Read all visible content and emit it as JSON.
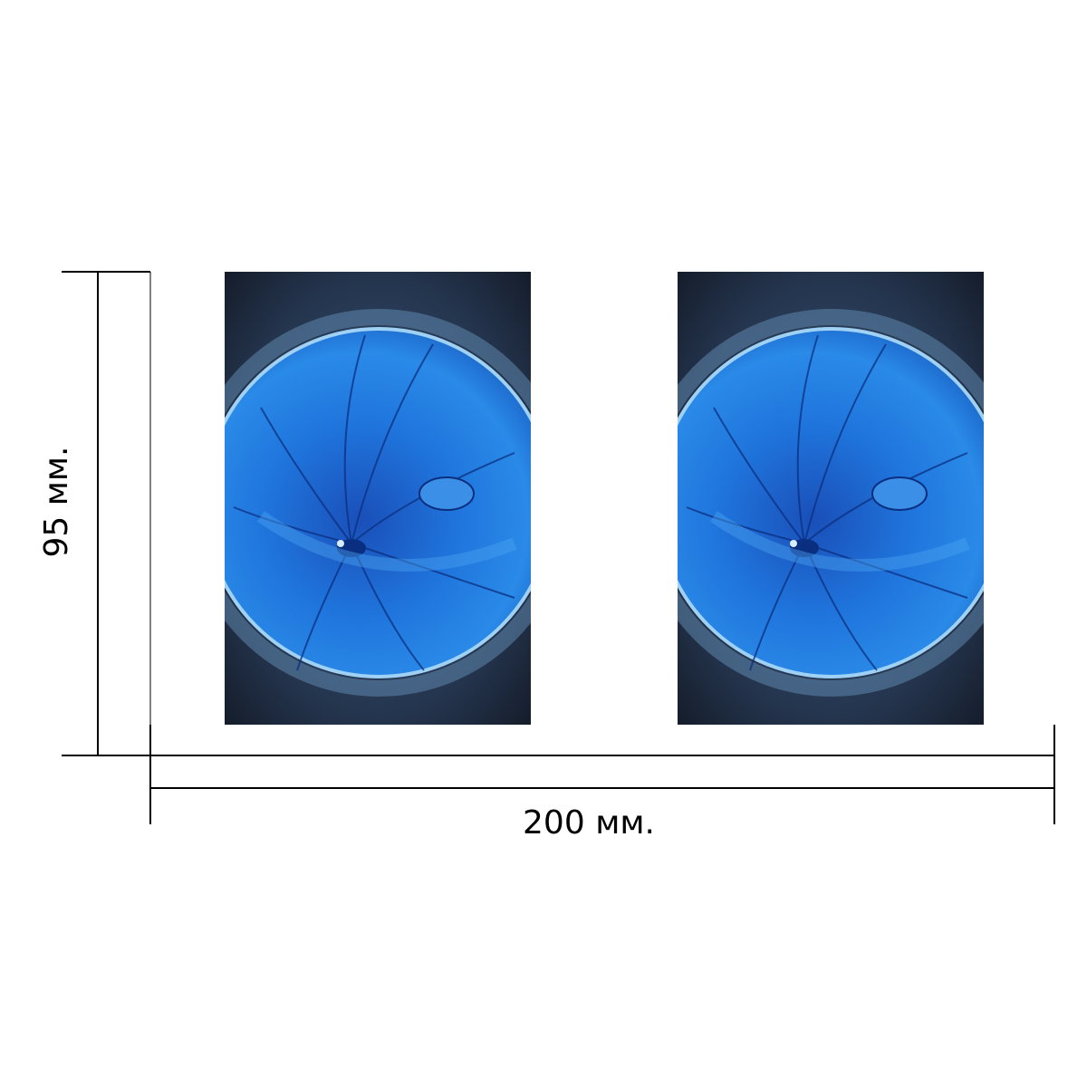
{
  "dimensions": {
    "width_label": "200 мм.",
    "height_label": "95 мм."
  },
  "panels": [
    {
      "name": "left",
      "icon": "blue-swirl-photo"
    },
    {
      "name": "right",
      "icon": "blue-swirl-photo"
    }
  ],
  "colors": {
    "background": "#ffffff",
    "line": "#000000",
    "photo_dark": "#1c2a3f",
    "photo_blue": "#1f6fd6",
    "photo_deep": "#0b2f80"
  }
}
